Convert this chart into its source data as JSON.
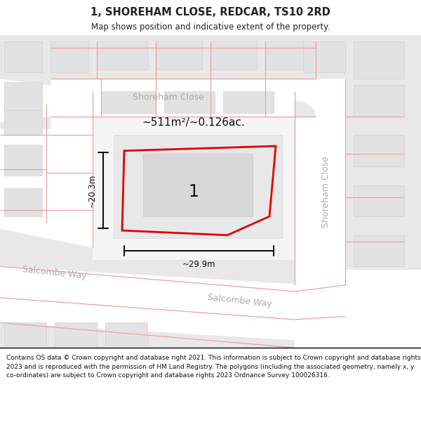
{
  "title": "1, SHOREHAM CLOSE, REDCAR, TS10 2RD",
  "subtitle": "Map shows position and indicative extent of the property.",
  "footer": "Contains OS data © Crown copyright and database right 2021. This information is subject to Crown copyright and database rights 2023 and is reproduced with the permission of HM Land Registry. The polygons (including the associated geometry, namely x, y co-ordinates) are subject to Crown copyright and database rights 2023 Ordnance Survey 100026316.",
  "area_label": "~511m²/~0.126ac.",
  "plot_number": "1",
  "dim_width": "~29.9m",
  "dim_height": "~20.3m",
  "street1": "Shoreham Close",
  "street2": "Shoreham Close",
  "street3": "Salcombe Way",
  "street4": "Salcombe Way",
  "bg_white": "#ffffff",
  "map_bg": "#f7f7f7",
  "road_gray": "#e0e0e0",
  "block_light": "#eeeeee",
  "block_mid": "#e8e8e8",
  "parcel_line": "#f0a0a0",
  "plot_red": "#e00000",
  "dim_black": "#111111",
  "street_gray": "#aaaaaa",
  "text_black": "#222222"
}
